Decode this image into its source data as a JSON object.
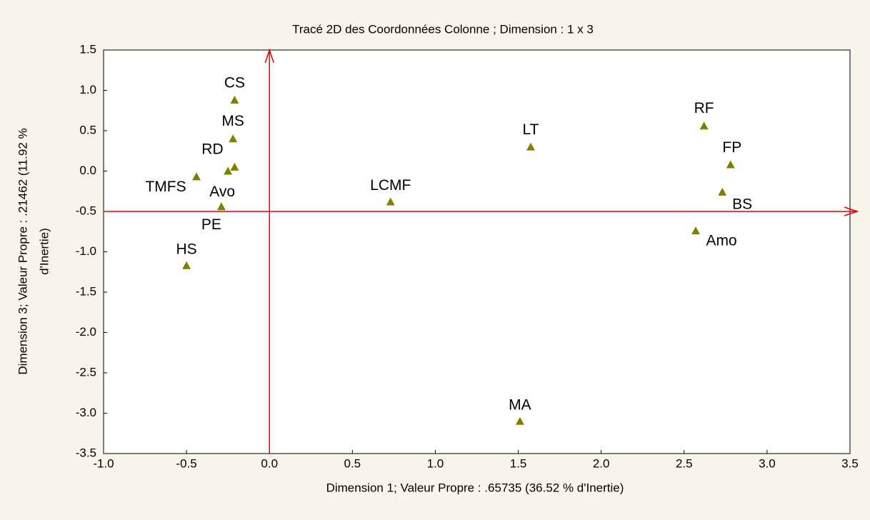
{
  "chart_data": {
    "type": "scatter",
    "title": "Tracé 2D des Coordonnées Colonne ; Dimension :  1 x 3",
    "xlabel": "Dimension 1; Valeur Propre : .65735 (36.52  % d'Inertie)",
    "ylabel": [
      "Dimension 3; Valeur Propre : .21462 (11.92 %",
      "d'Inertie)"
    ],
    "xlim": [
      -1.0,
      3.5
    ],
    "ylim": [
      -3.5,
      1.5
    ],
    "xticks": [
      {
        "value": -1.0,
        "label": "-1.0"
      },
      -0.5,
      {
        "value": 0,
        "label": "0.0"
      },
      0.5,
      {
        "value": 1,
        "label": "1.0"
      },
      1.5,
      {
        "value": 2,
        "label": "2.0"
      },
      2.5,
      {
        "value": 3,
        "label": "3.0"
      },
      3.5
    ],
    "yticks": [
      1.5,
      {
        "value": 1,
        "label": "1.0"
      },
      0.5,
      {
        "value": 0,
        "label": "0.0"
      },
      -0.5,
      {
        "value": -1,
        "label": "-1.0"
      },
      -1.5,
      {
        "value": -2,
        "label": "-2.0"
      },
      -2.5,
      {
        "value": -3,
        "label": "-3.0"
      },
      -3.5
    ],
    "reference_lines": {
      "x": 0,
      "y": -0.5,
      "color": "#e00000"
    },
    "series": [
      {
        "color": "#808000",
        "labels": [
          "CS",
          "MS",
          "RD",
          "Avo",
          "TMFS",
          "PE",
          "HS",
          "LCMF",
          "LT",
          "MA",
          "RF",
          "FP",
          "BS",
          "Amo"
        ],
        "x": [
          -0.21,
          -0.22,
          -0.21,
          -0.25,
          -0.44,
          -0.29,
          -0.5,
          0.73,
          1.575,
          1.51,
          2.62,
          2.78,
          2.73,
          2.57
        ],
        "values": [
          0.88,
          0.4,
          0.05,
          0.0,
          -0.07,
          -0.44,
          -1.17,
          -0.38,
          0.3,
          -3.1,
          0.56,
          0.08,
          -0.26,
          -0.74
        ]
      }
    ]
  }
}
